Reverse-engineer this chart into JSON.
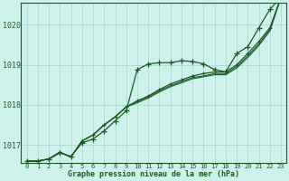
{
  "bg_color": "#cff0eb",
  "grid_color": "#b0d8d0",
  "line_color": "#1a5c28",
  "xlabel": "Graphe pression niveau de la mer (hPa)",
  "ylim": [
    1016.55,
    1020.55
  ],
  "xlim": [
    -0.5,
    23.5
  ],
  "yticks": [
    1017,
    1018,
    1019,
    1020
  ],
  "xticks": [
    0,
    1,
    2,
    3,
    4,
    5,
    6,
    7,
    8,
    9,
    10,
    11,
    12,
    13,
    14,
    15,
    16,
    17,
    18,
    19,
    20,
    21,
    22,
    23
  ],
  "series1_x": [
    0,
    1,
    2,
    3,
    4,
    5,
    6,
    7,
    8,
    9,
    10,
    11,
    12,
    13,
    14,
    15,
    16,
    17,
    18,
    19,
    20,
    21,
    22,
    23
  ],
  "series1_y": [
    1016.6,
    1016.6,
    1016.65,
    1016.8,
    1016.72,
    1017.05,
    1017.15,
    1017.35,
    1017.6,
    1017.85,
    1018.88,
    1019.02,
    1019.05,
    1019.05,
    1019.1,
    1019.08,
    1019.02,
    1018.88,
    1018.82,
    1019.28,
    1019.45,
    1019.92,
    1020.38,
    1020.68
  ],
  "series2_x": [
    0,
    1,
    2,
    3,
    4,
    5,
    6,
    7,
    8,
    9,
    10,
    11,
    12,
    13,
    14,
    15,
    16,
    17,
    18,
    19,
    20,
    21,
    22,
    23
  ],
  "series2_y": [
    1016.6,
    1016.6,
    1016.65,
    1016.82,
    1016.7,
    1017.1,
    1017.25,
    1017.5,
    1017.7,
    1017.95,
    1018.1,
    1018.22,
    1018.38,
    1018.52,
    1018.62,
    1018.72,
    1018.78,
    1018.82,
    1018.82,
    1019.0,
    1019.28,
    1019.58,
    1019.92,
    1020.68
  ],
  "series3_x": [
    0,
    1,
    2,
    3,
    4,
    5,
    6,
    7,
    8,
    9,
    10,
    11,
    12,
    13,
    14,
    15,
    16,
    17,
    18,
    19,
    20,
    21,
    22,
    23
  ],
  "series3_y": [
    1016.6,
    1016.6,
    1016.65,
    1016.82,
    1016.7,
    1017.1,
    1017.25,
    1017.5,
    1017.7,
    1017.95,
    1018.08,
    1018.2,
    1018.35,
    1018.48,
    1018.58,
    1018.68,
    1018.72,
    1018.78,
    1018.78,
    1018.96,
    1019.22,
    1019.52,
    1019.88,
    1020.68
  ],
  "series4_x": [
    0,
    1,
    2,
    3,
    4,
    5,
    6,
    7,
    8,
    9,
    10,
    11,
    12,
    13,
    14,
    15,
    16,
    17,
    18,
    19,
    20,
    21,
    22,
    23
  ],
  "series4_y": [
    1016.6,
    1016.6,
    1016.65,
    1016.82,
    1016.7,
    1017.1,
    1017.25,
    1017.5,
    1017.7,
    1017.95,
    1018.05,
    1018.17,
    1018.32,
    1018.45,
    1018.55,
    1018.65,
    1018.7,
    1018.75,
    1018.75,
    1018.92,
    1019.18,
    1019.48,
    1019.84,
    1020.68
  ]
}
